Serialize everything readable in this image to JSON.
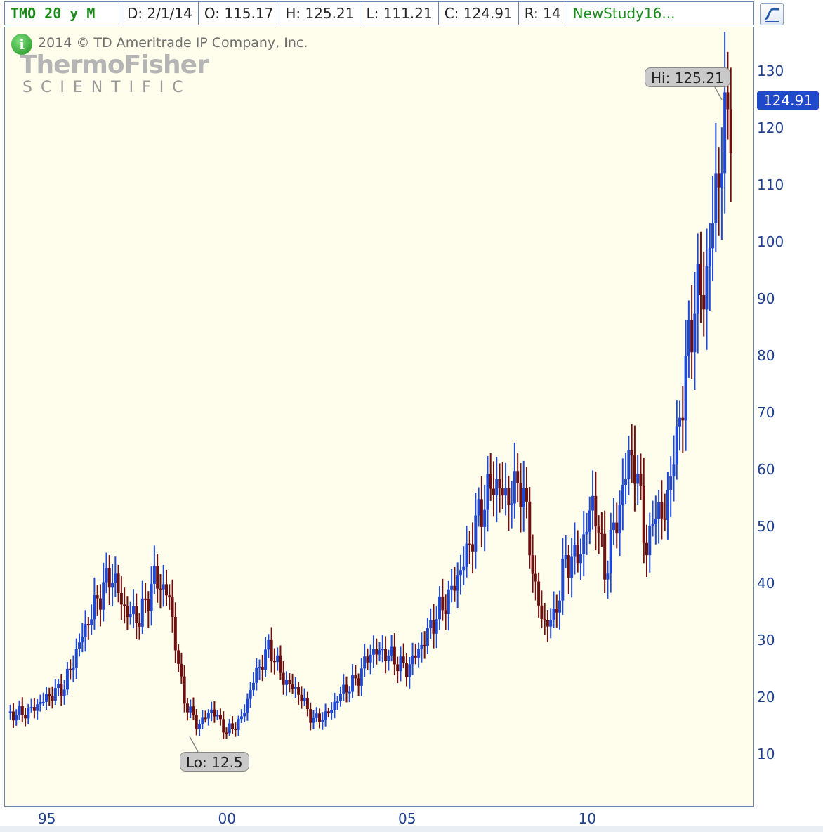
{
  "header": {
    "symbol": "TMO 20 y M",
    "date": "D: 2/1/14",
    "open": "O: 115.17",
    "high": "H: 125.21",
    "low": "L: 111.21",
    "close": "C: 124.91",
    "range": "R: 14",
    "study": "NewStudy16..."
  },
  "copyright": "2014 © TD Ameritrade IP Company, Inc.",
  "logo": {
    "line1": "ThermoFisher",
    "line2": "SCIENTIFIC"
  },
  "colors": {
    "up": "#1f49d4",
    "down": "#6e1010",
    "background": "#fffdeb",
    "axis_text": "#1f3f8f"
  },
  "chart_data": {
    "type": "line",
    "title": "",
    "xlabel": "",
    "ylabel": "",
    "ylim": [
      1,
      137
    ],
    "y_ticks": [
      10,
      20,
      30,
      40,
      50,
      60,
      70,
      80,
      90,
      100,
      110,
      120,
      130
    ],
    "x_ticks": [
      "95",
      "00",
      "05",
      "10"
    ],
    "last_price": "124.91",
    "hi_label": "Hi: 125.21",
    "lo_label": "Lo: 12.5",
    "series": [
      {
        "x": [
          1994.0,
          1994.5,
          1995.0,
          1995.5,
          1996.0,
          1996.4,
          1996.8,
          1997.2,
          1997.6,
          1998.0,
          1998.4,
          1998.8,
          1999.2,
          1999.6,
          2000.0,
          2000.4,
          2000.8,
          2001.2,
          2001.6,
          2002.0,
          2002.4,
          2002.8,
          2003.2,
          2003.6,
          2004.0,
          2004.4,
          2004.8,
          2005.0,
          2005.4,
          2005.8,
          2006.2,
          2006.6,
          2007.0,
          2007.4,
          2007.8,
          2008.2,
          2008.6,
          2008.8,
          2009.1,
          2009.4,
          2009.8,
          2010.2,
          2010.5,
          2010.7,
          2011.0,
          2011.2,
          2011.5,
          2011.7,
          2011.9,
          2012.1,
          2012.3,
          2012.5,
          2012.8,
          2013.0,
          2013.3,
          2013.6,
          2013.8,
          2014.0
        ],
        "values": [
          17,
          17.5,
          20,
          22,
          31,
          37,
          42,
          35,
          34,
          41,
          38,
          20,
          15,
          18,
          14,
          16,
          24,
          29,
          23,
          21,
          16,
          17,
          21,
          23,
          28,
          28,
          26,
          25,
          29,
          34,
          38,
          44,
          52,
          58,
          55,
          58,
          38,
          33,
          34,
          44,
          45,
          55,
          42,
          48,
          56,
          64,
          55,
          44,
          55,
          50,
          58,
          65,
          80,
          90,
          92,
          110,
          118,
          125
        ]
      }
    ]
  }
}
